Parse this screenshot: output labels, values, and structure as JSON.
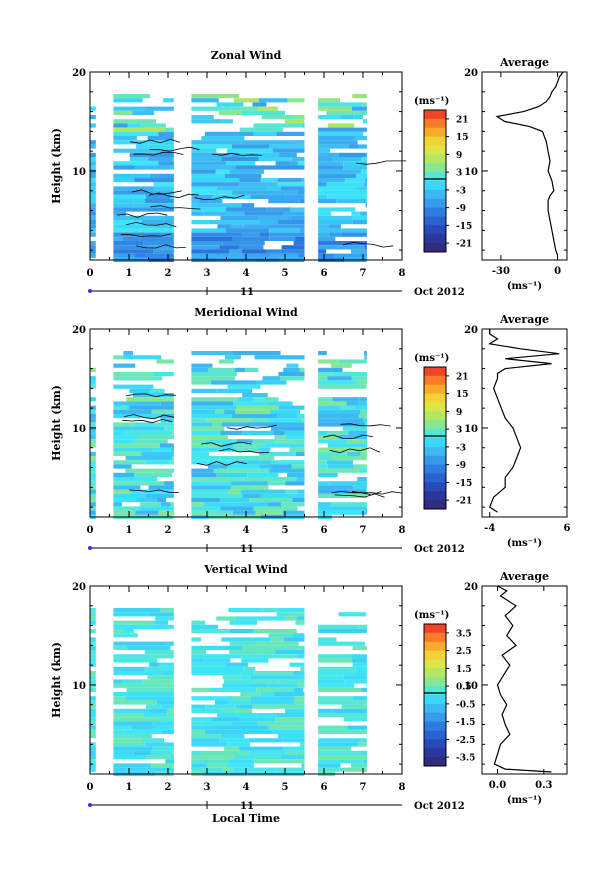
{
  "figure": {
    "x_axis_label": "Local Time",
    "date_label": "Oct 2012",
    "day_label": "11"
  },
  "chart_data": [
    {
      "type": "heatmap",
      "title": "Zonal Wind",
      "ylabel": "Height (km)",
      "xlabel": "Local Time",
      "xlim": [
        0,
        8
      ],
      "ylim": [
        1,
        20
      ],
      "x_ticks": [
        "0",
        "1",
        "2",
        "3",
        "4",
        "5",
        "6",
        "7",
        "8"
      ],
      "y_ticks": [
        "10",
        "20"
      ],
      "colorbar": {
        "unit": "(ms⁻¹)",
        "levels": [
          "21",
          "15",
          "9",
          "3",
          "-3",
          "-9",
          "-15",
          "-21"
        ],
        "range": [
          -24,
          24
        ]
      },
      "data_gaps_hours": [
        [
          0.15,
          0.6
        ],
        [
          2.15,
          2.6
        ],
        [
          5.5,
          5.85
        ],
        [
          7.1,
          8.0
        ]
      ],
      "average_profile": {
        "title": "Average",
        "xlabel": "(ms⁻¹)",
        "xlim": [
          -40,
          5
        ],
        "x_ticks": [
          "-30",
          "0"
        ],
        "y_ticks": [
          "10",
          "20"
        ],
        "heights_km": [
          1.5,
          2,
          3,
          4,
          5,
          6,
          7,
          7.5,
          8,
          9,
          10,
          11,
          12,
          13,
          14,
          14.5,
          15,
          15.5,
          16,
          16.5,
          17,
          17.5,
          18,
          18.5,
          19,
          19.5,
          20
        ],
        "values": [
          0,
          -1,
          -2,
          -3,
          -4,
          -5,
          -5,
          -4,
          -2,
          -3,
          -5,
          -4,
          -5,
          -6,
          -8,
          -15,
          -28,
          -32,
          -18,
          -10,
          -6,
          -4,
          -3,
          -1,
          0,
          1,
          3
        ]
      }
    },
    {
      "type": "heatmap",
      "title": "Meridional Wind",
      "ylabel": "Height (km)",
      "xlabel": "Local Time",
      "xlim": [
        0,
        8
      ],
      "ylim": [
        1,
        20
      ],
      "x_ticks": [
        "0",
        "1",
        "2",
        "3",
        "4",
        "5",
        "6",
        "7",
        "8"
      ],
      "y_ticks": [
        "10",
        "20"
      ],
      "colorbar": {
        "unit": "(ms⁻¹)",
        "levels": [
          "21",
          "15",
          "9",
          "3",
          "-3",
          "-9",
          "-15",
          "-21"
        ],
        "range": [
          -24,
          24
        ]
      },
      "data_gaps_hours": [
        [
          0.15,
          0.6
        ],
        [
          2.15,
          2.6
        ],
        [
          5.5,
          5.85
        ],
        [
          7.1,
          8.0
        ]
      ],
      "average_profile": {
        "title": "Average",
        "xlabel": "(ms⁻¹)",
        "xlim": [
          -5,
          6
        ],
        "x_ticks": [
          "-4",
          "6"
        ],
        "y_ticks": [
          "10",
          "20"
        ],
        "heights_km": [
          1.5,
          2,
          3,
          4,
          5,
          6,
          7,
          8,
          9,
          10,
          11,
          12,
          13,
          14,
          15,
          15.5,
          16,
          16.5,
          17,
          17.5,
          18,
          18.5,
          19,
          19.5,
          20
        ],
        "values": [
          -3,
          -4,
          -3.5,
          -2,
          -2,
          -1,
          -0.5,
          0,
          -0.5,
          -1,
          -2,
          -2.5,
          -3,
          -3.5,
          -3,
          -3,
          -2,
          4,
          -2,
          5,
          0,
          -4,
          -3,
          -4,
          -4
        ]
      }
    },
    {
      "type": "heatmap",
      "title": "Vertical Wind",
      "ylabel": "Height (km)",
      "xlabel": "Local Time",
      "xlim": [
        0,
        8
      ],
      "ylim": [
        1,
        20
      ],
      "x_ticks": [
        "0",
        "1",
        "2",
        "3",
        "4",
        "5",
        "6",
        "7",
        "8"
      ],
      "y_ticks": [
        "10",
        "20"
      ],
      "colorbar": {
        "unit": "(ms⁻¹)",
        "levels": [
          "3.5",
          "2.5",
          "1.5",
          "0.5",
          "-0.5",
          "-1.5",
          "-2.5",
          "-3.5"
        ],
        "range": [
          -4,
          4
        ]
      },
      "data_gaps_hours": [
        [
          0.15,
          0.6
        ],
        [
          2.15,
          2.6
        ],
        [
          5.5,
          5.85
        ],
        [
          7.1,
          8.0
        ]
      ],
      "average_profile": {
        "title": "Average",
        "xlabel": "(ms⁻¹)",
        "xlim": [
          -0.1,
          0.45
        ],
        "x_ticks": [
          "0.0",
          "0.3"
        ],
        "y_ticks": [
          "10",
          "20"
        ],
        "heights_km": [
          1.2,
          1.5,
          2,
          3,
          4,
          5,
          6,
          7,
          8,
          9,
          10,
          11,
          12,
          13,
          14,
          15,
          16,
          17,
          18,
          19,
          19.5,
          20
        ],
        "values": [
          0.35,
          0.05,
          -0.02,
          0.0,
          0.02,
          0.08,
          0.05,
          0.03,
          0.06,
          0.02,
          0.0,
          0.04,
          0.08,
          0.03,
          0.12,
          0.06,
          0.1,
          0.05,
          0.12,
          0.02,
          0.06,
          0.0
        ]
      }
    }
  ]
}
